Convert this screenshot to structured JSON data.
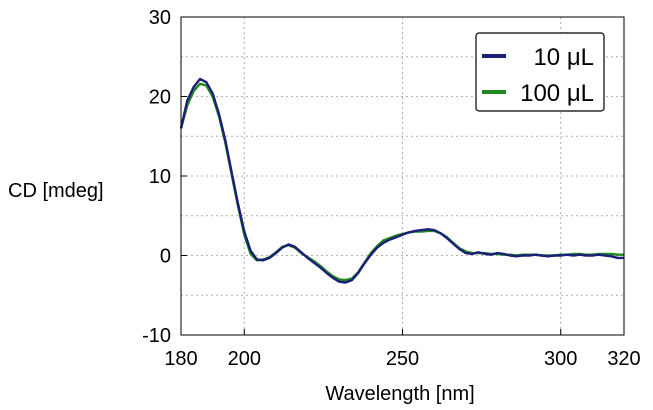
{
  "chart_data": {
    "type": "line",
    "xlabel": "Wavelength [nm]",
    "ylabel": "CD [mdeg]",
    "xlim": [
      180,
      320
    ],
    "ylim": [
      -10,
      30
    ],
    "x_ticks": [
      180,
      200,
      250,
      300,
      320
    ],
    "y_ticks": [
      -10,
      0,
      10,
      20,
      30
    ],
    "x_tick_labels": [
      "180",
      "200",
      "250",
      "300",
      "320"
    ],
    "y_tick_labels": [
      "-10",
      "0",
      "10",
      "20",
      "30"
    ],
    "grid": "dashed-gray",
    "legend_position": "top-right",
    "series": [
      {
        "name": "10 μL",
        "color": "#1b1f78",
        "x": [
          180,
          182,
          184,
          186,
          188,
          190,
          192,
          194,
          196,
          198,
          200,
          202,
          204,
          206,
          208,
          210,
          212,
          214,
          216,
          218,
          220,
          222,
          224,
          226,
          228,
          230,
          232,
          234,
          236,
          238,
          240,
          242,
          244,
          246,
          248,
          250,
          252,
          254,
          256,
          258,
          260,
          262,
          264,
          266,
          268,
          270,
          272,
          274,
          276,
          278,
          280,
          282,
          284,
          286,
          288,
          290,
          292,
          294,
          296,
          298,
          300,
          302,
          304,
          306,
          308,
          310,
          312,
          314,
          316,
          318,
          320
        ],
        "y": [
          16,
          19.5,
          21.2,
          22.2,
          21.8,
          20.4,
          17.8,
          14.5,
          10.5,
          6.5,
          3,
          0.6,
          -0.5,
          -0.6,
          -0.3,
          0.3,
          1,
          1.4,
          1.1,
          0.4,
          -0.3,
          -0.9,
          -1.5,
          -2.2,
          -2.8,
          -3.3,
          -3.4,
          -3.1,
          -2.2,
          -1,
          0.1,
          1,
          1.6,
          2,
          2.3,
          2.6,
          2.9,
          3.1,
          3.2,
          3.3,
          3.2,
          2.8,
          2.2,
          1.5,
          0.8,
          0.3,
          0.2,
          0.4,
          0.2,
          0.1,
          0.3,
          0.2,
          0,
          -0.1,
          0,
          0,
          0.1,
          0,
          -0.1,
          0,
          0,
          0.1,
          0,
          0.1,
          0,
          0,
          0.1,
          0,
          -0.1,
          -0.3,
          -0.3
        ]
      },
      {
        "name": "100 μL",
        "color": "#1e8a1e",
        "x": [
          180,
          182,
          184,
          186,
          188,
          190,
          192,
          194,
          196,
          198,
          200,
          202,
          204,
          206,
          208,
          210,
          212,
          214,
          216,
          218,
          220,
          222,
          224,
          226,
          228,
          230,
          232,
          234,
          236,
          238,
          240,
          242,
          244,
          246,
          248,
          250,
          252,
          254,
          256,
          258,
          260,
          262,
          264,
          266,
          268,
          270,
          272,
          274,
          276,
          278,
          280,
          282,
          284,
          286,
          288,
          290,
          292,
          294,
          296,
          298,
          300,
          302,
          304,
          306,
          308,
          310,
          312,
          314,
          316,
          318,
          320
        ],
        "y": [
          16,
          18.9,
          20.7,
          21.6,
          21.4,
          20,
          17.5,
          14.2,
          10.2,
          6.2,
          2.6,
          0.2,
          -0.6,
          -0.5,
          -0.2,
          0.4,
          1.1,
          1.3,
          1,
          0.3,
          -0.2,
          -0.7,
          -1.3,
          -2,
          -2.6,
          -3,
          -3.1,
          -2.9,
          -2.1,
          -0.9,
          0.3,
          1.2,
          1.9,
          2.2,
          2.5,
          2.7,
          2.9,
          3,
          3,
          3.1,
          3.1,
          2.8,
          2.3,
          1.6,
          0.9,
          0.5,
          0.3,
          0.3,
          0.3,
          0.2,
          0.2,
          0.1,
          0.1,
          0,
          0.1,
          0.1,
          0.1,
          0,
          0,
          0,
          0.1,
          0.1,
          0.2,
          0.2,
          0.1,
          0.1,
          0.2,
          0.2,
          0.2,
          0.1,
          0.1
        ]
      }
    ]
  }
}
